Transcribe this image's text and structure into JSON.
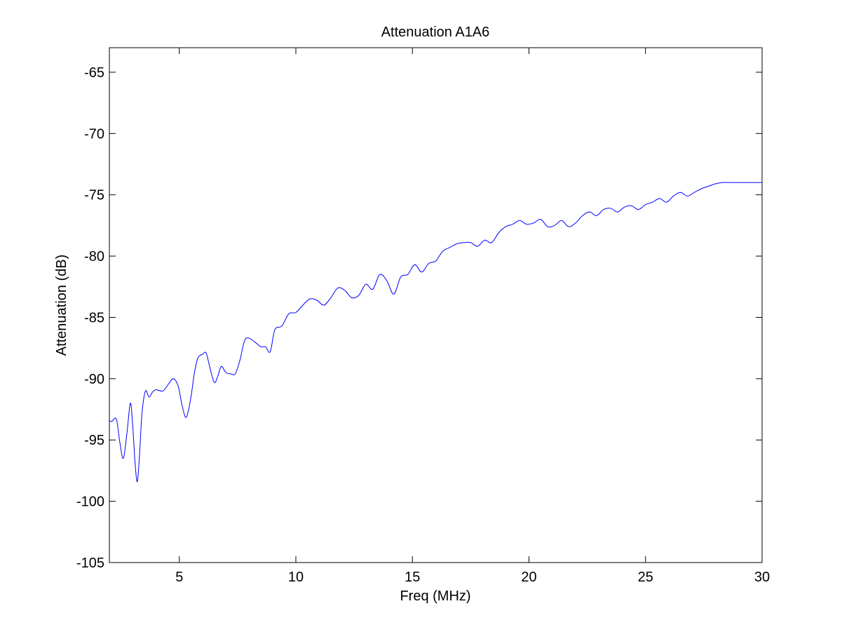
{
  "chart_data": {
    "type": "line",
    "title": "Attenuation A1A6",
    "xlabel": "Freq (MHz)",
    "ylabel": "Attenuation (dB)",
    "xlim": [
      2,
      30
    ],
    "ylim": [
      -105,
      -63
    ],
    "grid": false,
    "x_ticks": [
      5,
      10,
      15,
      20,
      25,
      30
    ],
    "y_ticks": [
      -65,
      -70,
      -75,
      -80,
      -85,
      -90,
      -95,
      -100,
      -105
    ],
    "x_tick_labels": [
      "5",
      "10",
      "15",
      "20",
      "25",
      "30"
    ],
    "y_tick_labels": [
      "-65",
      "-70",
      "-75",
      "-80",
      "-85",
      "-90",
      "-95",
      "-100",
      "-105"
    ],
    "series": [
      {
        "color": "#0000ff",
        "x": [
          2.0,
          2.1,
          2.3,
          2.45,
          2.6,
          2.75,
          2.9,
          3.0,
          3.1,
          3.2,
          3.3,
          3.4,
          3.55,
          3.7,
          3.85,
          4.0,
          4.3,
          4.55,
          4.75,
          4.95,
          5.1,
          5.25,
          5.35,
          5.5,
          5.65,
          5.8,
          6.0,
          6.15,
          6.3,
          6.5,
          6.65,
          6.8,
          7.0,
          7.2,
          7.4,
          7.6,
          7.8,
          8.0,
          8.3,
          8.5,
          8.7,
          8.9,
          9.1,
          9.4,
          9.7,
          10.0,
          10.3,
          10.6,
          10.9,
          11.2,
          11.5,
          11.8,
          12.1,
          12.4,
          12.7,
          13.0,
          13.3,
          13.6,
          13.9,
          14.2,
          14.5,
          14.8,
          15.1,
          15.4,
          15.7,
          16.0,
          16.3,
          16.6,
          16.9,
          17.2,
          17.5,
          17.8,
          18.1,
          18.4,
          18.7,
          19.0,
          19.3,
          19.6,
          19.9,
          20.2,
          20.5,
          20.8,
          21.1,
          21.4,
          21.7,
          22.0,
          22.3,
          22.6,
          22.9,
          23.2,
          23.5,
          23.8,
          24.1,
          24.4,
          24.7,
          25.0,
          25.3,
          25.6,
          25.9,
          26.2,
          26.5,
          26.8,
          27.1,
          27.4,
          27.7,
          28.0,
          28.3,
          28.6,
          28.9,
          29.2,
          29.5,
          29.8,
          30.0
        ],
        "y": [
          -93.4,
          -93.5,
          -93.3,
          -95.2,
          -96.5,
          -94.5,
          -92.0,
          -93.8,
          -96.8,
          -98.4,
          -96.0,
          -92.8,
          -91.0,
          -91.5,
          -91.1,
          -90.9,
          -91.0,
          -90.4,
          -90.0,
          -90.6,
          -92.0,
          -93.1,
          -92.9,
          -91.5,
          -89.5,
          -88.3,
          -88.0,
          -87.9,
          -89.0,
          -90.3,
          -89.8,
          -89.0,
          -89.5,
          -89.6,
          -89.6,
          -88.5,
          -86.9,
          -86.7,
          -87.1,
          -87.4,
          -87.4,
          -87.8,
          -86.0,
          -85.7,
          -84.7,
          -84.6,
          -84.0,
          -83.5,
          -83.6,
          -84.0,
          -83.4,
          -82.6,
          -82.8,
          -83.4,
          -83.2,
          -82.3,
          -82.7,
          -81.5,
          -82.0,
          -83.1,
          -81.7,
          -81.5,
          -80.7,
          -81.3,
          -80.6,
          -80.4,
          -79.6,
          -79.3,
          -79.0,
          -78.9,
          -78.9,
          -79.2,
          -78.7,
          -78.9,
          -78.1,
          -77.6,
          -77.4,
          -77.1,
          -77.4,
          -77.3,
          -77.0,
          -77.6,
          -77.5,
          -77.1,
          -77.6,
          -77.3,
          -76.7,
          -76.4,
          -76.7,
          -76.2,
          -76.1,
          -76.4,
          -76.0,
          -75.9,
          -76.2,
          -75.8,
          -75.6,
          -75.3,
          -75.6,
          -75.1,
          -74.8,
          -75.1,
          -74.8,
          -74.5,
          -74.3,
          -74.1,
          -74.0,
          -74.0,
          -74.0,
          -74.0,
          -74.0,
          -74.0,
          -74.0
        ]
      }
    ]
  }
}
